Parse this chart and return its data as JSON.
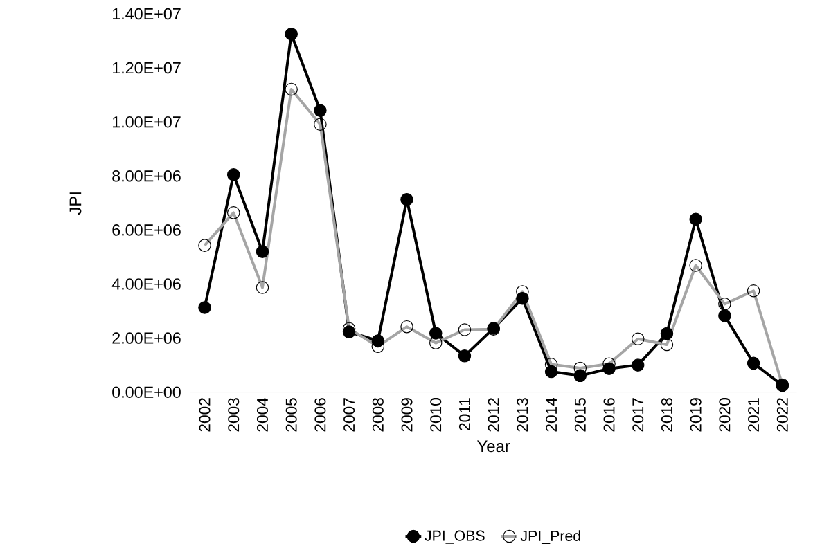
{
  "chart_data": {
    "type": "line",
    "xlabel": "Year",
    "ylabel": "JPI",
    "categories": [
      "2002",
      "2003",
      "2004",
      "2005",
      "2006",
      "2007",
      "2008",
      "2009",
      "2010",
      "2011",
      "2012",
      "2013",
      "2014",
      "2015",
      "2016",
      "2017",
      "2018",
      "2019",
      "2020",
      "2021",
      "2022"
    ],
    "series": [
      {
        "name": "JPI_OBS",
        "color": "#000000",
        "values": [
          3130000,
          8050000,
          5200000,
          13250000,
          10420000,
          2230000,
          1900000,
          7130000,
          2180000,
          1340000,
          2360000,
          3470000,
          760000,
          610000,
          870000,
          1000000,
          2170000,
          6400000,
          2830000,
          1070000,
          250000
        ]
      },
      {
        "name": "JPI_Pred",
        "color": "#a5a5a5",
        "values": [
          5430000,
          6640000,
          3870000,
          11210000,
          9910000,
          2350000,
          1690000,
          2420000,
          1820000,
          2310000,
          2330000,
          3720000,
          1030000,
          890000,
          1050000,
          1970000,
          1760000,
          4690000,
          3260000,
          3750000,
          270000
        ]
      }
    ],
    "ylim": [
      0,
      14000000
    ],
    "yticks": [
      {
        "value": 0,
        "label": "0.00E+00"
      },
      {
        "value": 2000000,
        "label": "2.00E+06"
      },
      {
        "value": 4000000,
        "label": "4.00E+06"
      },
      {
        "value": 6000000,
        "label": "6.00E+06"
      },
      {
        "value": 8000000,
        "label": "8.00E+06"
      },
      {
        "value": 10000000,
        "label": "1.00E+07"
      },
      {
        "value": 12000000,
        "label": "1.20E+07"
      },
      {
        "value": 14000000,
        "label": "1.40E+07"
      }
    ],
    "legend": "bottom",
    "marker": "circle",
    "line_style": "solid"
  }
}
